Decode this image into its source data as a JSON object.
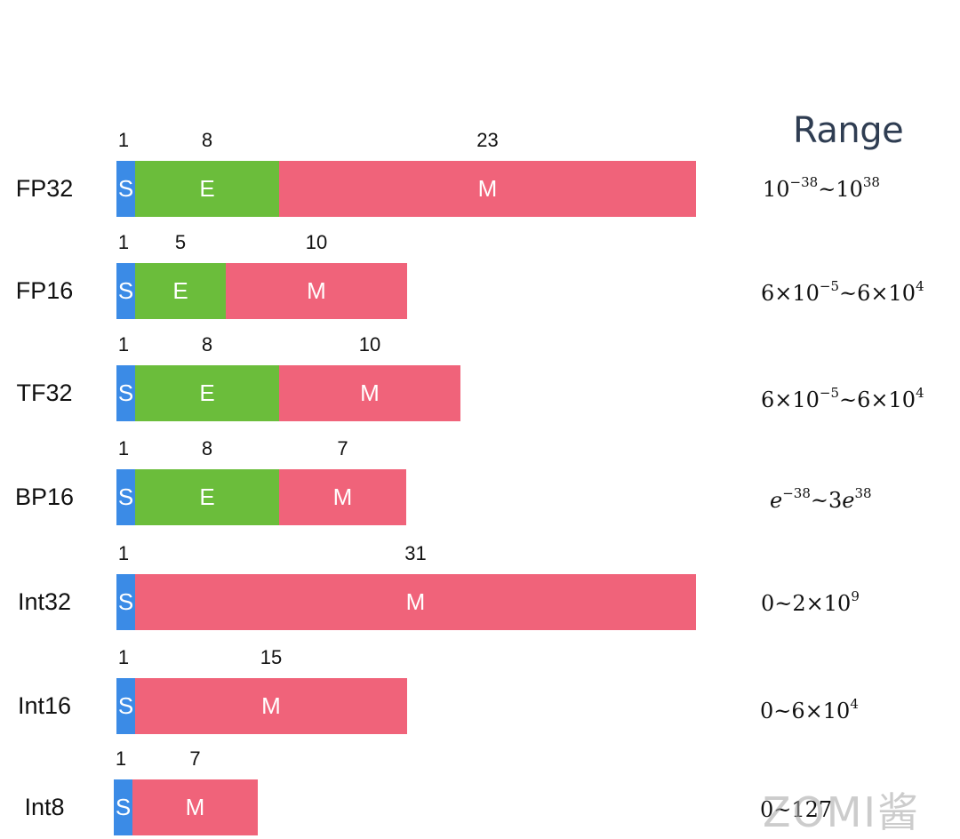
{
  "range_header": "Range",
  "watermark": "ZOMI酱",
  "colors": {
    "sign": "#3b8be6",
    "exponent": "#6bbd3b",
    "mantissa": "#f0637a"
  },
  "rows": [
    {
      "label": "FP32",
      "segments": [
        {
          "type": "S",
          "bits": "1",
          "text": "S"
        },
        {
          "type": "E",
          "bits": "8",
          "text": "E"
        },
        {
          "type": "M",
          "bits": "23",
          "text": "M"
        }
      ],
      "range": {
        "base1": "10",
        "exp1": "−38",
        "sep": "~",
        "base2": "10",
        "exp2": "38"
      }
    },
    {
      "label": "FP16",
      "segments": [
        {
          "type": "S",
          "bits": "1",
          "text": "S"
        },
        {
          "type": "E",
          "bits": "5",
          "text": "E"
        },
        {
          "type": "M",
          "bits": "10",
          "text": "M"
        }
      ],
      "range": {
        "base1": "6×10",
        "exp1": "−5",
        "sep": "~",
        "base2": "6×10",
        "exp2": "4"
      }
    },
    {
      "label": "TF32",
      "segments": [
        {
          "type": "S",
          "bits": "1",
          "text": "S"
        },
        {
          "type": "E",
          "bits": "8",
          "text": "E"
        },
        {
          "type": "M",
          "bits": "10",
          "text": "M"
        }
      ],
      "range": {
        "base1": "6×10",
        "exp1": "−5",
        "sep": "~",
        "base2": "6×10",
        "exp2": "4"
      }
    },
    {
      "label": "BP16",
      "segments": [
        {
          "type": "S",
          "bits": "1",
          "text": "S"
        },
        {
          "type": "E",
          "bits": "8",
          "text": "E"
        },
        {
          "type": "M",
          "bits": "7",
          "text": "M"
        }
      ],
      "range": {
        "base1": "e",
        "exp1": "−38",
        "sep": "~",
        "base2": "3e",
        "exp2": "38"
      }
    },
    {
      "label": "Int32",
      "segments": [
        {
          "type": "S",
          "bits": "1",
          "text": "S"
        },
        {
          "type": "M",
          "bits": "31",
          "text": "M"
        }
      ],
      "range": {
        "base1": "0",
        "exp1": "",
        "sep": "~",
        "base2": "2×10",
        "exp2": "9"
      }
    },
    {
      "label": "Int16",
      "segments": [
        {
          "type": "S",
          "bits": "1",
          "text": "S"
        },
        {
          "type": "M",
          "bits": "15",
          "text": "M"
        }
      ],
      "range": {
        "base1": "0",
        "exp1": "",
        "sep": "~",
        "base2": "6×10",
        "exp2": "4"
      }
    },
    {
      "label": "Int8",
      "segments": [
        {
          "type": "S",
          "bits": "1",
          "text": "S"
        },
        {
          "type": "M",
          "bits": "7",
          "text": "M"
        }
      ],
      "range": {
        "base1": "0",
        "exp1": "",
        "sep": "~",
        "base2": "127",
        "exp2": ""
      }
    }
  ]
}
